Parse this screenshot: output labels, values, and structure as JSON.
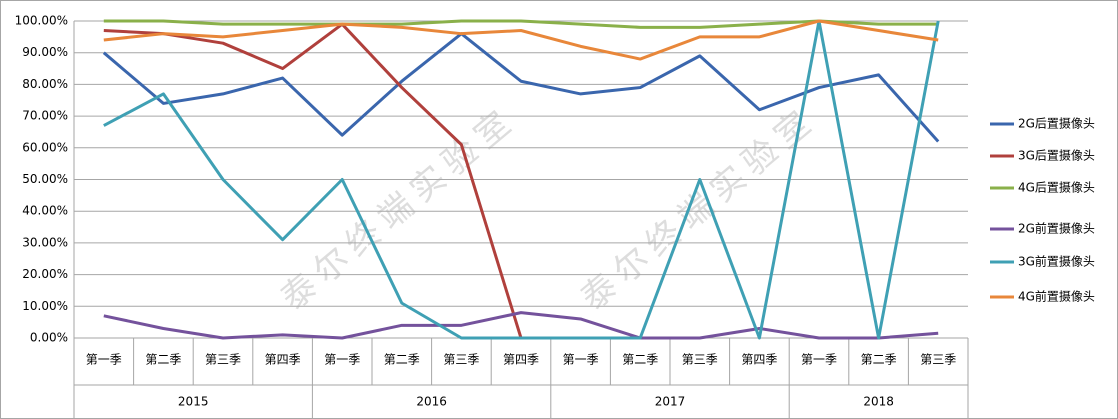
{
  "chart_data": {
    "type": "line",
    "categories": [
      "第一季",
      "第二季",
      "第三季",
      "第四季",
      "第一季",
      "第二季",
      "第三季",
      "第四季",
      "第一季",
      "第二季",
      "第三季",
      "第四季",
      "第一季",
      "第二季",
      "第三季"
    ],
    "groups": [
      {
        "label": "2015",
        "count": 4
      },
      {
        "label": "2016",
        "count": 4
      },
      {
        "label": "2017",
        "count": 4
      },
      {
        "label": "2018",
        "count": 3
      }
    ],
    "series": [
      {
        "name": "2G后置摄像头",
        "color": "#3a66ad",
        "values": [
          90,
          74,
          77,
          82,
          64,
          81,
          96,
          81,
          77,
          79,
          89,
          72,
          79,
          83,
          62
        ]
      },
      {
        "name": "3G后置摄像头",
        "color": "#b0403c",
        "values": [
          97,
          96,
          93,
          85,
          99,
          79,
          61,
          0,
          null,
          null,
          null,
          null,
          null,
          null,
          null
        ]
      },
      {
        "name": "4G后置摄像头",
        "color": "#8ab04a",
        "values": [
          100,
          100,
          99,
          99,
          99,
          99,
          100,
          100,
          99,
          98,
          98,
          99,
          100,
          99,
          99
        ]
      },
      {
        "name": "2G前置摄像头",
        "color": "#74529c",
        "values": [
          7,
          3,
          0,
          1,
          0,
          4,
          4,
          8,
          6,
          0,
          0,
          3,
          0,
          0,
          1.5
        ]
      },
      {
        "name": "3G前置摄像头",
        "color": "#3fa0b4",
        "values": [
          67,
          77,
          50,
          31,
          50,
          11,
          0,
          0,
          0,
          0,
          50,
          0,
          100,
          0,
          100
        ]
      },
      {
        "name": "4G前置摄像头",
        "color": "#e8873a",
        "values": [
          94,
          96,
          95,
          97,
          99,
          98,
          96,
          97,
          92,
          88,
          95,
          95,
          100,
          97,
          94
        ]
      }
    ],
    "ylim": [
      0,
      100
    ],
    "yticks": [
      {
        "value": 0,
        "label": "0.00%"
      },
      {
        "value": 10,
        "label": "10.00%"
      },
      {
        "value": 20,
        "label": "20.00%"
      },
      {
        "value": 30,
        "label": "30.00%"
      },
      {
        "value": 40,
        "label": "40.00%"
      },
      {
        "value": 50,
        "label": "50.00%"
      },
      {
        "value": 60,
        "label": "60.00%"
      },
      {
        "value": 70,
        "label": "70.00%"
      },
      {
        "value": 80,
        "label": "80.00%"
      },
      {
        "value": 90,
        "label": "90.00%"
      },
      {
        "value": 100,
        "label": "100.00%"
      }
    ],
    "grid": true,
    "legend": "right",
    "annotations": [
      {
        "text": "泰尔终端实验室"
      },
      {
        "text": "泰尔终端实验室"
      }
    ]
  }
}
